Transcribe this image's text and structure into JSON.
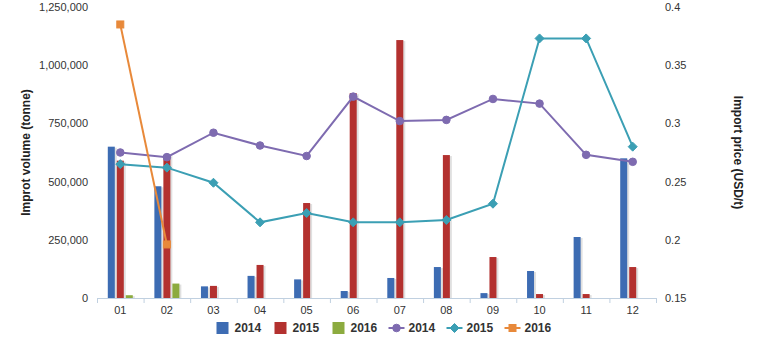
{
  "chart_data": {
    "type": "bar",
    "y_label": "Improt volume (tonne)",
    "y2_label": "Import price (USD/t)",
    "categories": [
      "01",
      "02",
      "03",
      "04",
      "05",
      "06",
      "07",
      "08",
      "09",
      "10",
      "11",
      "12"
    ],
    "ylim": [
      0,
      1250000
    ],
    "yticks": [
      0,
      {
        "value": 250000,
        "label": "250,000"
      },
      {
        "value": 500000,
        "label": "500,000"
      },
      {
        "value": 750000,
        "label": "750,000"
      },
      {
        "value": 1000000,
        "label": "1,000,000"
      },
      {
        "value": 1250000,
        "label": "1,250,000"
      }
    ],
    "y2lim": [
      0.15,
      0.4
    ],
    "y2ticks": [
      0.15,
      0.2,
      0.25,
      0.3,
      0.35,
      0.4
    ],
    "grid": false,
    "legend": "bottom",
    "series": [
      {
        "name": "2014",
        "type": "bar",
        "color": "#3d6cb3",
        "values": [
          650000,
          480000,
          50000,
          95000,
          80000,
          30000,
          86000,
          133000,
          21000,
          116000,
          262000,
          600000
        ]
      },
      {
        "name": "2015",
        "type": "bar",
        "color": "#b3312f",
        "values": [
          590000,
          614000,
          52000,
          142000,
          408000,
          880000,
          1108000,
          614000,
          176000,
          17000,
          17000,
          133000
        ]
      },
      {
        "name": "2016",
        "type": "bar",
        "color": "#8cab3f",
        "values": [
          12000,
          62000,
          null,
          null,
          null,
          null,
          null,
          null,
          null,
          null,
          null,
          null
        ]
      },
      {
        "name": "2014",
        "type": "line",
        "axis": "y2",
        "marker": "circle",
        "color": "#7e6bb0",
        "values": [
          0.275,
          0.271,
          0.292,
          0.281,
          0.272,
          0.323,
          0.302,
          0.303,
          0.321,
          0.317,
          0.273,
          0.267
        ]
      },
      {
        "name": "2015",
        "type": "line",
        "axis": "y2",
        "marker": "diamond",
        "color": "#3b9fb4",
        "values": [
          0.265,
          0.262,
          0.249,
          0.215,
          0.223,
          0.215,
          0.215,
          0.217,
          0.231,
          0.373,
          0.373,
          0.28
        ]
      },
      {
        "name": "2016",
        "type": "line",
        "axis": "y2",
        "marker": "square",
        "color": "#e8893a",
        "values": [
          0.385,
          0.196,
          null,
          null,
          null,
          null,
          null,
          null,
          null,
          null,
          null,
          null
        ]
      }
    ]
  }
}
